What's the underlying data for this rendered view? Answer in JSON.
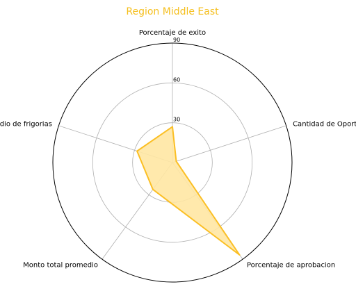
{
  "chart_data": {
    "type": "radar",
    "title": "Region Middle East",
    "axes": [
      "Porcentaje de exito",
      "Cantidad de Oportunidades",
      "Porcentaje de aprobacion",
      "Monto total promedio",
      "Promedio de frigorias"
    ],
    "series": [
      {
        "values": [
          27,
          3,
          86,
          25,
          28
        ]
      }
    ],
    "rlim": [
      0,
      90
    ],
    "ticks": [
      30,
      60,
      90
    ],
    "grid": true,
    "colors": {
      "title": "#f5bf1e",
      "line": "#fbbf24",
      "fill": "#ffe7a3",
      "grid": "#b0b0b0",
      "frame": "#000000"
    }
  }
}
